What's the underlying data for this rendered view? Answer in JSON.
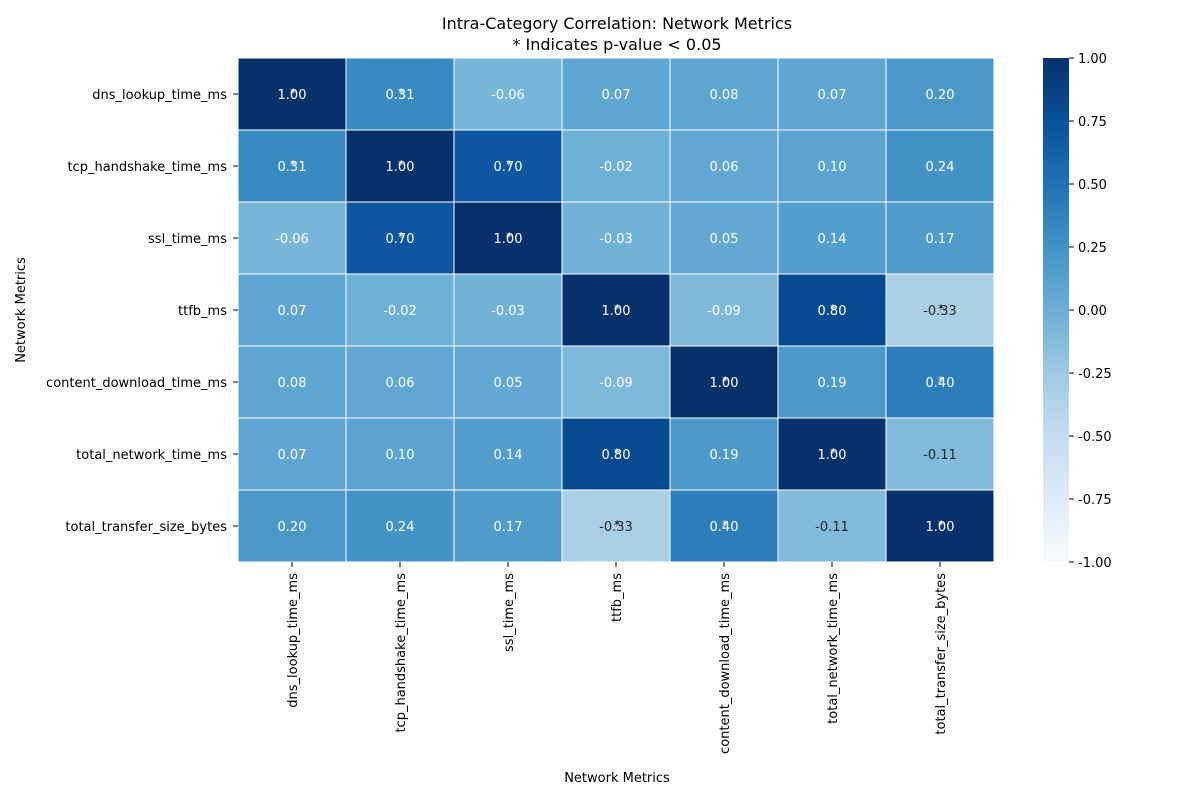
{
  "chart_data": {
    "type": "heatmap",
    "title": "Intra-Category Correlation: Network Metrics",
    "subtitle": "* Indicates p-value < 0.05",
    "xlabel": "Network Metrics",
    "ylabel": "Network Metrics",
    "categories": [
      "dns_lookup_time_ms",
      "tcp_handshake_time_ms",
      "ssl_time_ms",
      "ttfb_ms",
      "content_download_time_ms",
      "total_network_time_ms",
      "total_transfer_size_bytes"
    ],
    "values": [
      [
        1.0,
        0.31,
        -0.06,
        0.07,
        0.08,
        0.07,
        0.2
      ],
      [
        0.31,
        1.0,
        0.7,
        -0.02,
        0.06,
        0.1,
        0.24
      ],
      [
        -0.06,
        0.7,
        1.0,
        -0.03,
        0.05,
        0.14,
        0.17
      ],
      [
        0.07,
        -0.02,
        -0.03,
        1.0,
        -0.09,
        0.8,
        -0.33
      ],
      [
        0.08,
        0.06,
        0.05,
        -0.09,
        1.0,
        0.19,
        0.4
      ],
      [
        0.07,
        0.1,
        0.14,
        0.8,
        0.19,
        1.0,
        -0.11
      ],
      [
        0.2,
        0.24,
        0.17,
        -0.33,
        0.4,
        -0.11,
        1.0
      ]
    ],
    "significant": [
      [
        true,
        true,
        false,
        false,
        false,
        false,
        false
      ],
      [
        true,
        true,
        true,
        false,
        false,
        false,
        false
      ],
      [
        false,
        true,
        true,
        false,
        false,
        false,
        false
      ],
      [
        false,
        false,
        false,
        true,
        false,
        true,
        true
      ],
      [
        false,
        false,
        false,
        false,
        true,
        false,
        true
      ],
      [
        false,
        false,
        false,
        true,
        false,
        true,
        false
      ],
      [
        false,
        false,
        false,
        true,
        true,
        false,
        true
      ]
    ],
    "colorbar": {
      "min": -1.0,
      "max": 1.0,
      "ticks": [
        "1.00",
        "0.75",
        "0.50",
        "0.25",
        "0.00",
        "-0.25",
        "-0.50",
        "-0.75",
        "-1.00"
      ]
    },
    "colormap": "Blues",
    "grid": true
  }
}
